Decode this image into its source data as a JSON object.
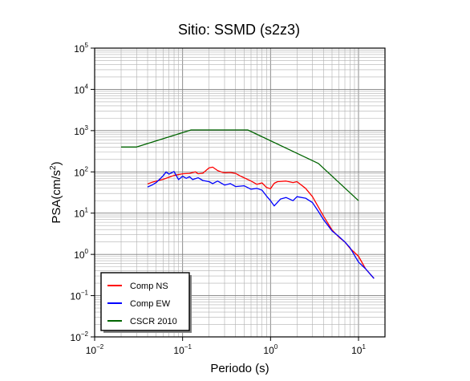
{
  "chart_data": {
    "type": "line",
    "title": "Sitio: SSMD (s2z3)",
    "xlabel": "Periodo (s)",
    "ylabel_base": "PSA(cm/s",
    "ylabel_sup": "2",
    "ylabel_end": ")",
    "x_scale": "log",
    "y_scale": "log",
    "xlim": [
      0.01,
      20
    ],
    "ylim": [
      0.01,
      100000
    ],
    "x_ticks": [
      {
        "value": 0.01,
        "base": "10",
        "exp": "−2"
      },
      {
        "value": 0.1,
        "base": "10",
        "exp": "−1"
      },
      {
        "value": 1,
        "base": "10",
        "exp": "0"
      },
      {
        "value": 10,
        "base": "10",
        "exp": "1"
      }
    ],
    "y_ticks": [
      {
        "value": 0.01,
        "base": "10",
        "exp": "−2"
      },
      {
        "value": 0.1,
        "base": "10",
        "exp": "−1"
      },
      {
        "value": 1,
        "base": "10",
        "exp": "0"
      },
      {
        "value": 10,
        "base": "10",
        "exp": "1"
      },
      {
        "value": 100,
        "base": "10",
        "exp": "2"
      },
      {
        "value": 1000,
        "base": "10",
        "exp": "3"
      },
      {
        "value": 10000,
        "base": "10",
        "exp": "4"
      },
      {
        "value": 100000,
        "base": "10",
        "exp": "5"
      }
    ],
    "grid": true,
    "legend_position": "bottom-left",
    "series": [
      {
        "name": "Comp NS",
        "color": "#ff0000",
        "x": [
          0.04,
          0.045,
          0.05,
          0.06,
          0.07,
          0.08,
          0.1,
          0.12,
          0.14,
          0.15,
          0.17,
          0.2,
          0.22,
          0.25,
          0.28,
          0.3,
          0.35,
          0.4,
          0.45,
          0.5,
          0.6,
          0.7,
          0.8,
          0.9,
          1.0,
          1.1,
          1.2,
          1.5,
          1.8,
          2.0,
          2.5,
          3.0,
          3.5,
          4.0,
          5.0,
          6.0,
          7.0,
          8.0,
          10.0,
          12.0,
          15.0
        ],
        "y": [
          51,
          56,
          60,
          66,
          74,
          82,
          90,
          92,
          100,
          90,
          93,
          125,
          130,
          108,
          98,
          95,
          97,
          92,
          80,
          72,
          60,
          50,
          54,
          42,
          39,
          53,
          58,
          60,
          55,
          58,
          40,
          25,
          14,
          8.5,
          3.9,
          2.6,
          2.0,
          1.4,
          0.9,
          0.45,
          0.26
        ]
      },
      {
        "name": "Comp EW",
        "color": "#0000ff",
        "x": [
          0.04,
          0.045,
          0.05,
          0.06,
          0.065,
          0.07,
          0.08,
          0.09,
          0.1,
          0.11,
          0.12,
          0.13,
          0.15,
          0.17,
          0.2,
          0.22,
          0.25,
          0.3,
          0.35,
          0.4,
          0.5,
          0.6,
          0.7,
          0.8,
          0.9,
          1.0,
          1.1,
          1.3,
          1.5,
          1.8,
          2.0,
          2.5,
          3.0,
          3.5,
          4.0,
          5.0,
          6.0,
          7.0,
          8.0,
          10.0,
          12.0,
          15.0
        ],
        "y": [
          43,
          48,
          55,
          80,
          100,
          88,
          102,
          65,
          78,
          70,
          76,
          65,
          72,
          62,
          58,
          52,
          60,
          48,
          52,
          44,
          46,
          38,
          40,
          36,
          26,
          20,
          15,
          22,
          24,
          20,
          25,
          23,
          18,
          11,
          7.0,
          3.7,
          2.7,
          2.0,
          1.45,
          0.65,
          0.45,
          0.26
        ]
      },
      {
        "name": "CSCR 2010",
        "color": "#006400",
        "x": [
          0.02,
          0.03,
          0.125,
          0.55,
          3.5,
          10.0
        ],
        "y": [
          400,
          400,
          1040,
          1040,
          160,
          20
        ]
      }
    ]
  }
}
